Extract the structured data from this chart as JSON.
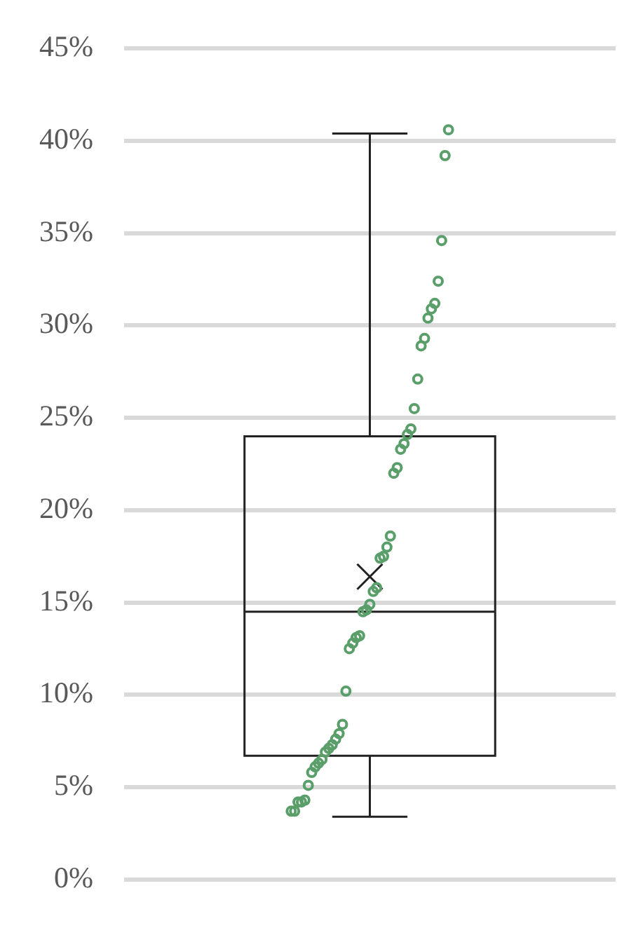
{
  "chart_data": {
    "type": "box",
    "categories": [
      null
    ],
    "boxes": [
      {
        "low": 3.4,
        "q1": 6.7,
        "median": 14.5,
        "q3": 24.0,
        "high": 40.4,
        "mean": 16.4
      }
    ],
    "series": [
      {
        "type": "scatter",
        "color": "#5a9e6a",
        "x": [
          null,
          null,
          null,
          null,
          null,
          null,
          null,
          null,
          null,
          null,
          null,
          null,
          null,
          null,
          null,
          null,
          null,
          null,
          null,
          null,
          null,
          null,
          null,
          null,
          null,
          null,
          null,
          null,
          null,
          null,
          null,
          null,
          null,
          null,
          null,
          null,
          null,
          null,
          null,
          null,
          null,
          null,
          null,
          null,
          null,
          null,
          null
        ],
        "values": [
          3.7,
          3.7,
          4.2,
          4.2,
          4.3,
          5.1,
          5.8,
          6.1,
          6.3,
          6.5,
          6.9,
          7.1,
          7.3,
          7.6,
          7.9,
          8.4,
          10.2,
          12.5,
          12.8,
          13.1,
          13.2,
          14.5,
          14.6,
          14.9,
          15.6,
          15.8,
          17.4,
          17.5,
          18.0,
          18.6,
          22.0,
          22.3,
          23.3,
          23.6,
          24.1,
          24.4,
          25.5,
          27.1,
          28.9,
          29.3,
          30.4,
          30.9,
          31.2,
          32.4,
          34.6,
          39.2,
          40.6
        ]
      }
    ],
    "ylim": [
      0,
      45
    ],
    "yticks": [
      {
        "value": 0,
        "label": "0%"
      },
      {
        "value": 5,
        "label": "5%"
      },
      {
        "value": 10,
        "label": "10%"
      },
      {
        "value": 15,
        "label": "15%"
      },
      {
        "value": 20,
        "label": "20%"
      },
      {
        "value": 25,
        "label": "25%"
      },
      {
        "value": 30,
        "label": "30%"
      },
      {
        "value": 35,
        "label": "35%"
      },
      {
        "value": 40,
        "label": "40%"
      },
      {
        "value": 45,
        "label": "45%"
      }
    ],
    "grid": "y",
    "legend": false,
    "marker": "circle"
  }
}
